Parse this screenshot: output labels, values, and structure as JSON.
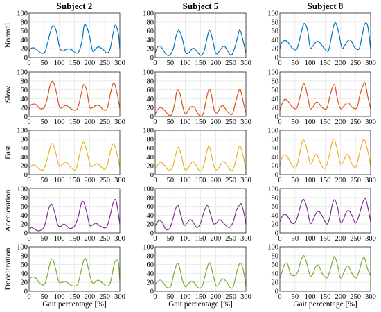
{
  "figure": {
    "column_titles": [
      "Subject 2",
      "Subject 5",
      "Subject 8"
    ],
    "row_labels": [
      "Normal",
      "Slow",
      "Fast",
      "Acceleration",
      "Deceleration"
    ],
    "xlabel": "Gait percentage [%]",
    "row_colors": [
      "#0072BD",
      "#D95319",
      "#EDB120",
      "#7E2F8E",
      "#77AC30"
    ]
  },
  "chart_data": {
    "type": "line",
    "layout": "grid 5 rows x 3 columns (rows = gait condition, columns = subject)",
    "x_range": [
      0,
      300
    ],
    "y_range": [
      0,
      100
    ],
    "x_ticks": [
      0,
      50,
      100,
      150,
      200,
      250,
      300
    ],
    "y_ticks": [
      0,
      20,
      40,
      60,
      80,
      100
    ],
    "grid": true,
    "panels": [
      {
        "row": "Normal",
        "subject": "Subject 2",
        "x": [
          0,
          5,
          15,
          25,
          40,
          52,
          62,
          72,
          80,
          90,
          100,
          110,
          125,
          140,
          155,
          165,
          175,
          182,
          190,
          200,
          210,
          220,
          230,
          245,
          258,
          268,
          278,
          285,
          295,
          300
        ],
        "y": [
          15,
          20,
          22,
          18,
          10,
          12,
          35,
          62,
          72,
          60,
          25,
          15,
          19,
          18,
          10,
          14,
          38,
          72,
          70,
          48,
          15,
          20,
          24,
          18,
          10,
          20,
          55,
          73,
          55,
          20
        ]
      },
      {
        "row": "Normal",
        "subject": "Subject 5",
        "x": [
          0,
          5,
          12,
          22,
          35,
          48,
          60,
          68,
          78,
          90,
          100,
          110,
          120,
          130,
          150,
          162,
          172,
          180,
          190,
          200,
          210,
          218,
          230,
          250,
          262,
          272,
          280,
          290,
          300
        ],
        "y": [
          10,
          20,
          26,
          22,
          8,
          5,
          20,
          45,
          62,
          42,
          12,
          10,
          18,
          20,
          5,
          15,
          45,
          62,
          40,
          10,
          12,
          20,
          25,
          5,
          20,
          45,
          63,
          40,
          10
        ]
      },
      {
        "row": "Normal",
        "subject": "Subject 8",
        "x": [
          0,
          5,
          15,
          25,
          40,
          55,
          65,
          75,
          82,
          92,
          100,
          108,
          120,
          130,
          145,
          160,
          170,
          178,
          185,
          195,
          205,
          215,
          225,
          235,
          248,
          262,
          272,
          280,
          290,
          300
        ],
        "y": [
          20,
          32,
          38,
          36,
          22,
          18,
          40,
          68,
          77,
          60,
          22,
          25,
          35,
          35,
          22,
          15,
          45,
          72,
          78,
          55,
          22,
          28,
          38,
          38,
          22,
          20,
          50,
          75,
          72,
          20
        ]
      },
      {
        "row": "Slow",
        "subject": "Subject 2",
        "x": [
          0,
          5,
          15,
          25,
          35,
          50,
          60,
          70,
          80,
          90,
          100,
          110,
          120,
          130,
          145,
          160,
          172,
          180,
          190,
          200,
          210,
          222,
          235,
          245,
          258,
          270,
          280,
          290,
          300
        ],
        "y": [
          15,
          25,
          28,
          26,
          18,
          20,
          40,
          72,
          78,
          55,
          22,
          20,
          25,
          22,
          15,
          18,
          50,
          72,
          60,
          22,
          20,
          25,
          23,
          15,
          18,
          55,
          76,
          55,
          18
        ]
      },
      {
        "row": "Slow",
        "subject": "Subject 5",
        "x": [
          0,
          8,
          18,
          30,
          45,
          55,
          65,
          72,
          82,
          92,
          100,
          110,
          120,
          130,
          145,
          158,
          168,
          177,
          185,
          195,
          205,
          215,
          225,
          240,
          255,
          265,
          275,
          282,
          292,
          300
        ],
        "y": [
          5,
          15,
          20,
          15,
          3,
          5,
          30,
          58,
          52,
          20,
          5,
          15,
          22,
          20,
          3,
          5,
          35,
          60,
          52,
          15,
          8,
          20,
          24,
          10,
          5,
          30,
          55,
          60,
          30,
          8
        ]
      },
      {
        "row": "Slow",
        "subject": "Subject 8",
        "x": [
          0,
          8,
          15,
          25,
          40,
          55,
          65,
          75,
          82,
          92,
          100,
          110,
          120,
          128,
          140,
          155,
          165,
          175,
          182,
          190,
          200,
          210,
          220,
          228,
          240,
          255,
          265,
          275,
          282,
          292,
          300
        ],
        "y": [
          15,
          30,
          38,
          36,
          22,
          18,
          40,
          68,
          72,
          45,
          18,
          22,
          32,
          30,
          20,
          18,
          45,
          68,
          70,
          40,
          18,
          22,
          30,
          30,
          20,
          20,
          50,
          70,
          75,
          40,
          18
        ]
      },
      {
        "row": "Fast",
        "subject": "Subject 2",
        "x": [
          0,
          5,
          12,
          22,
          35,
          48,
          60,
          70,
          78,
          88,
          98,
          108,
          118,
          128,
          140,
          155,
          165,
          175,
          182,
          192,
          202,
          212,
          222,
          232,
          248,
          258,
          268,
          278,
          288,
          300
        ],
        "y": [
          15,
          18,
          22,
          20,
          12,
          12,
          35,
          62,
          70,
          50,
          22,
          22,
          28,
          25,
          15,
          12,
          40,
          68,
          72,
          50,
          20,
          20,
          25,
          22,
          12,
          20,
          50,
          70,
          55,
          18
        ]
      },
      {
        "row": "Fast",
        "subject": "Subject 5",
        "x": [
          0,
          8,
          18,
          30,
          45,
          58,
          68,
          76,
          86,
          96,
          105,
          115,
          125,
          135,
          148,
          160,
          170,
          178,
          186,
          196,
          206,
          216,
          226,
          240,
          252,
          262,
          272,
          280,
          290,
          300
        ],
        "y": [
          15,
          22,
          28,
          22,
          10,
          18,
          45,
          62,
          45,
          15,
          12,
          22,
          30,
          22,
          8,
          20,
          50,
          64,
          45,
          15,
          12,
          22,
          30,
          20,
          8,
          20,
          50,
          65,
          45,
          12
        ]
      },
      {
        "row": "Fast",
        "subject": "Subject 8",
        "x": [
          0,
          5,
          15,
          25,
          40,
          52,
          62,
          72,
          80,
          90,
          100,
          108,
          118,
          125,
          138,
          150,
          162,
          172,
          180,
          190,
          200,
          210,
          220,
          228,
          240,
          252,
          262,
          272,
          280,
          290,
          300
        ],
        "y": [
          20,
          35,
          45,
          40,
          22,
          15,
          35,
          70,
          78,
          55,
          25,
          30,
          45,
          42,
          20,
          15,
          40,
          72,
          80,
          55,
          25,
          30,
          45,
          42,
          22,
          18,
          45,
          72,
          78,
          55,
          20
        ]
      },
      {
        "row": "Acceleration",
        "subject": "Subject 2",
        "x": [
          0,
          8,
          15,
          25,
          35,
          48,
          55,
          65,
          75,
          85,
          95,
          105,
          115,
          125,
          135,
          150,
          162,
          172,
          180,
          190,
          200,
          210,
          220,
          230,
          245,
          258,
          270,
          278,
          288,
          300
        ],
        "y": [
          8,
          12,
          10,
          6,
          5,
          12,
          25,
          55,
          65,
          45,
          18,
          15,
          20,
          15,
          10,
          15,
          35,
          65,
          70,
          48,
          18,
          18,
          22,
          18,
          12,
          15,
          45,
          68,
          72,
          20
        ]
      },
      {
        "row": "Acceleration",
        "subject": "Subject 5",
        "x": [
          0,
          8,
          15,
          25,
          35,
          48,
          58,
          68,
          76,
          85,
          95,
          105,
          115,
          125,
          138,
          150,
          160,
          172,
          182,
          192,
          202,
          212,
          222,
          232,
          245,
          258,
          268,
          278,
          285,
          295,
          300
        ],
        "y": [
          15,
          25,
          28,
          22,
          8,
          10,
          30,
          55,
          62,
          40,
          18,
          22,
          30,
          25,
          12,
          22,
          45,
          62,
          45,
          22,
          22,
          30,
          25,
          18,
          12,
          25,
          50,
          62,
          65,
          40,
          20
        ]
      },
      {
        "row": "Acceleration",
        "subject": "Subject 8",
        "x": [
          0,
          8,
          18,
          28,
          40,
          52,
          62,
          72,
          80,
          90,
          100,
          110,
          120,
          130,
          140,
          155,
          165,
          172,
          180,
          190,
          200,
          210,
          218,
          228,
          238,
          250,
          262,
          272,
          282,
          290,
          300
        ],
        "y": [
          25,
          38,
          42,
          35,
          22,
          25,
          45,
          70,
          75,
          55,
          22,
          30,
          45,
          48,
          38,
          20,
          35,
          60,
          75,
          60,
          25,
          30,
          45,
          50,
          40,
          22,
          40,
          65,
          78,
          60,
          25
        ]
      },
      {
        "row": "Deceleration",
        "subject": "Subject 2",
        "x": [
          0,
          5,
          15,
          25,
          35,
          50,
          60,
          70,
          78,
          88,
          98,
          110,
          120,
          130,
          145,
          160,
          170,
          180,
          188,
          198,
          208,
          218,
          228,
          240,
          255,
          268,
          278,
          285,
          295,
          300
        ],
        "y": [
          20,
          30,
          32,
          28,
          18,
          15,
          35,
          65,
          72,
          50,
          22,
          20,
          22,
          18,
          12,
          15,
          40,
          68,
          72,
          45,
          20,
          20,
          25,
          20,
          12,
          18,
          50,
          68,
          65,
          22
        ]
      },
      {
        "row": "Deceleration",
        "subject": "Subject 5",
        "x": [
          0,
          8,
          18,
          28,
          40,
          52,
          62,
          72,
          80,
          90,
          100,
          108,
          118,
          128,
          142,
          155,
          165,
          175,
          182,
          192,
          202,
          212,
          222,
          235,
          248,
          258,
          268,
          276,
          285,
          295,
          300
        ],
        "y": [
          15,
          22,
          25,
          18,
          8,
          12,
          40,
          62,
          55,
          25,
          10,
          15,
          22,
          20,
          8,
          10,
          35,
          60,
          62,
          35,
          12,
          18,
          28,
          22,
          8,
          10,
          38,
          58,
          62,
          35,
          12
        ]
      },
      {
        "row": "Deceleration",
        "subject": "Subject 8",
        "x": [
          0,
          8,
          15,
          25,
          35,
          48,
          60,
          70,
          80,
          90,
          100,
          110,
          118,
          128,
          140,
          155,
          165,
          175,
          182,
          192,
          200,
          210,
          220,
          228,
          240,
          252,
          262,
          272,
          280,
          290,
          300
        ],
        "y": [
          30,
          45,
          60,
          62,
          40,
          35,
          45,
          70,
          80,
          60,
          35,
          40,
          55,
          58,
          40,
          30,
          45,
          70,
          78,
          55,
          30,
          40,
          55,
          55,
          38,
          30,
          45,
          70,
          75,
          50,
          35
        ]
      }
    ]
  }
}
